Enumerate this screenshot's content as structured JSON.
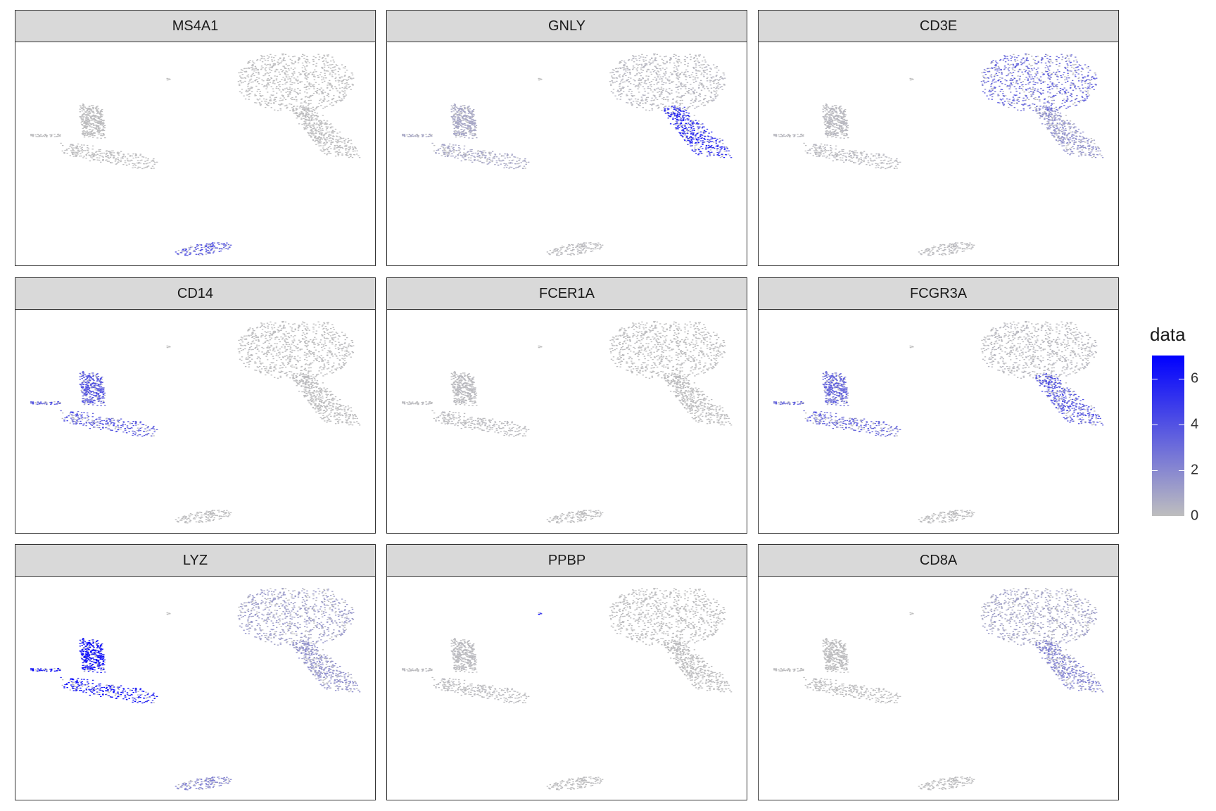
{
  "chart_data": {
    "type": "scatter",
    "description_free": true,
    "facets": [
      "MS4A1",
      "GNLY",
      "CD3E",
      "CD14",
      "FCER1A",
      "FCGR3A",
      "LYZ",
      "PPBP",
      "CD8A"
    ],
    "clusters": [
      {
        "id": "t_cells",
        "x_range": [
          2.5,
          10.5
        ],
        "y_range": [
          2.5,
          8.5
        ]
      },
      {
        "id": "nk_tail",
        "x_range": [
          6.5,
          10.5
        ],
        "y_range": [
          -2.5,
          2.5
        ]
      },
      {
        "id": "monocytes",
        "x_range": [
          -12,
          -3
        ],
        "y_range": [
          -3,
          3
        ]
      },
      {
        "id": "b_cells",
        "x_range": [
          -2,
          2
        ],
        "y_range": [
          -12,
          -10.5
        ]
      },
      {
        "id": "platelets",
        "x_range": [
          -2.6,
          -2.2
        ],
        "y_range": [
          5.5,
          6
        ]
      }
    ],
    "expression": {
      "MS4A1": {
        "t_cells": 0.1,
        "nk_tail": 0.1,
        "monocytes": 0.1,
        "b_cells": 3.5,
        "platelets": 0
      },
      "GNLY": {
        "t_cells": 0.4,
        "nk_tail": 5.0,
        "monocytes": 0.8,
        "b_cells": 0.2,
        "platelets": 0
      },
      "CD3E": {
        "t_cells": 3.0,
        "nk_tail": 1.5,
        "monocytes": 0.3,
        "b_cells": 0.2,
        "platelets": 0
      },
      "CD14": {
        "t_cells": 0.1,
        "nk_tail": 0.1,
        "monocytes": 3.5,
        "b_cells": 0.1,
        "platelets": 0
      },
      "FCER1A": {
        "t_cells": 0.1,
        "nk_tail": 0.1,
        "monocytes": 0.2,
        "b_cells": 0.1,
        "platelets": 0
      },
      "FCGR3A": {
        "t_cells": 0.3,
        "nk_tail": 3.5,
        "monocytes": 3.0,
        "b_cells": 0.1,
        "platelets": 0
      },
      "LYZ": {
        "t_cells": 1.2,
        "nk_tail": 1.5,
        "monocytes": 6.0,
        "b_cells": 2.0,
        "platelets": 0
      },
      "PPBP": {
        "t_cells": 0.1,
        "nk_tail": 0.1,
        "monocytes": 0.2,
        "b_cells": 0.1,
        "platelets": 6.0
      },
      "CD8A": {
        "t_cells": 1.0,
        "nk_tail": 2.0,
        "monocytes": 0.1,
        "b_cells": 0.1,
        "platelets": 0
      }
    },
    "xlim": [
      -13,
      12
    ],
    "ylim": [
      -13,
      9.5
    ],
    "color_scale": {
      "low": "#bebebe",
      "high": "#0000ff",
      "min": 0,
      "max": 7
    },
    "legend": {
      "title": "data",
      "ticks": [
        0,
        2,
        4,
        6
      ],
      "position": "right"
    },
    "grid": false
  }
}
